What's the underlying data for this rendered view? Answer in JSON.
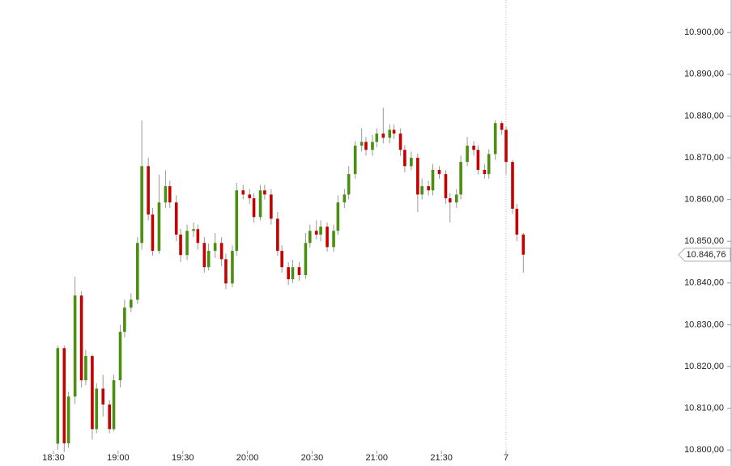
{
  "chart_data": {
    "type": "candlestick",
    "x": [
      "18:32",
      "18:35",
      "18:37",
      "18:40",
      "18:43",
      "18:45",
      "18:48",
      "18:50",
      "18:53",
      "18:56",
      "18:58",
      "19:01",
      "19:03",
      "19:06",
      "19:09",
      "19:11",
      "19:14",
      "19:16",
      "19:19",
      "19:22",
      "19:24",
      "19:27",
      "19:29",
      "19:32",
      "19:35",
      "19:37",
      "19:40",
      "19:42",
      "19:45",
      "19:48",
      "19:50",
      "19:53",
      "19:55",
      "19:58",
      "20:01",
      "20:03",
      "20:06",
      "20:08",
      "20:11",
      "20:14",
      "20:16",
      "20:19",
      "20:21",
      "20:24",
      "20:27",
      "20:29",
      "20:32",
      "20:34",
      "20:37",
      "20:40",
      "20:42",
      "20:45",
      "20:47",
      "20:50",
      "20:53",
      "20:55",
      "20:58",
      "21:00",
      "21:03",
      "21:06",
      "21:08",
      "21:11",
      "21:13",
      "21:16",
      "21:19",
      "21:21",
      "21:24",
      "21:26",
      "21:29",
      "21:32",
      "21:34",
      "21:37",
      "21:39",
      "21:42",
      "21:45",
      "21:47",
      "21:50",
      "21:52",
      "21:55",
      "21:58",
      "22:00",
      "22:03",
      "22:05",
      "22:08"
    ],
    "open": [
      10801.5,
      10824.4,
      10801.6,
      10812.8,
      10837.0,
      10816.7,
      10822.5,
      10805.0,
      10814.7,
      10810.9,
      10805.0,
      10816.7,
      10828.3,
      10834.1,
      10836.0,
      10849.6,
      10868.0,
      10856.4,
      10847.7,
      10859.3,
      10863.2,
      10859.3,
      10851.6,
      10846.7,
      10852.5,
      10852.9,
      10849.6,
      10843.8,
      10847.7,
      10849.6,
      10845.7,
      10839.9,
      10847.7,
      10862.2,
      10861.2,
      10860.3,
      10855.8,
      10862.2,
      10861.2,
      10855.4,
      10847.7,
      10843.8,
      10840.9,
      10843.8,
      10841.9,
      10849.6,
      10852.5,
      10851.6,
      10853.5,
      10848.6,
      10852.5,
      10859.3,
      10861.2,
      10866.1,
      10872.9,
      10873.8,
      10871.9,
      10873.8,
      10875.8,
      10874.8,
      10876.7,
      10875.8,
      10871.9,
      10868.0,
      10870.0,
      10861.2,
      10863.2,
      10862.2,
      10867.1,
      10866.1,
      10860.3,
      10859.3,
      10861.2,
      10869.0,
      10872.9,
      10871.9,
      10867.1,
      10866.1,
      10870.9,
      10878.3,
      10876.7,
      10869.0,
      10857.8,
      10851.6
    ],
    "high": [
      10825.0,
      10825.0,
      10814.0,
      10841.5,
      10838.0,
      10824.0,
      10823.0,
      10816.0,
      10818.0,
      10812.0,
      10818.0,
      10830.0,
      10836.0,
      10837.5,
      10851.0,
      10879.0,
      10870.0,
      10858.0,
      10866.0,
      10867.0,
      10864.5,
      10861.0,
      10853.0,
      10854.0,
      10854.5,
      10854.0,
      10851.0,
      10849.5,
      10852.0,
      10851.0,
      10847.0,
      10849.0,
      10864.0,
      10863.5,
      10862.5,
      10861.5,
      10863.5,
      10863.5,
      10862.5,
      10857.0,
      10849.0,
      10845.0,
      10845.5,
      10845.0,
      10852.0,
      10854.0,
      10855.0,
      10855.0,
      10854.5,
      10854.0,
      10861.0,
      10862.5,
      10868.0,
      10874.0,
      10877.0,
      10875.0,
      10875.5,
      10877.0,
      10882.0,
      10878.0,
      10878.0,
      10877.0,
      10873.0,
      10871.5,
      10871.0,
      10865.0,
      10864.5,
      10868.5,
      10868.0,
      10867.0,
      10861.5,
      10862.5,
      10870.5,
      10875.0,
      10874.0,
      10873.0,
      10868.5,
      10872.0,
      10879.0,
      10878.8,
      10877.5,
      10869.5,
      10859.0,
      10852.0
    ],
    "low": [
      10800.0,
      10799.5,
      10800.5,
      10811.0,
      10815.0,
      10815.5,
      10802.5,
      10804.0,
      10808.0,
      10804.0,
      10804.5,
      10815.0,
      10827.0,
      10833.0,
      10835.0,
      10848.0,
      10855.0,
      10846.5,
      10847.0,
      10858.0,
      10858.0,
      10850.0,
      10845.0,
      10845.5,
      10851.0,
      10848.0,
      10842.5,
      10843.0,
      10846.0,
      10844.0,
      10838.5,
      10839.0,
      10846.5,
      10860.0,
      10859.0,
      10854.5,
      10855.0,
      10860.0,
      10854.0,
      10846.5,
      10842.5,
      10839.5,
      10840.0,
      10840.5,
      10841.0,
      10848.5,
      10850.5,
      10850.0,
      10847.5,
      10847.5,
      10851.5,
      10858.0,
      10860.0,
      10865.0,
      10871.5,
      10870.5,
      10870.5,
      10872.5,
      10873.5,
      10873.5,
      10874.5,
      10870.5,
      10866.5,
      10867.0,
      10857.0,
      10860.0,
      10861.0,
      10861.0,
      10865.0,
      10859.0,
      10854.5,
      10858.0,
      10860.0,
      10868.0,
      10870.5,
      10866.0,
      10865.0,
      10865.0,
      10869.5,
      10875.5,
      10866.0,
      10856.5,
      10850.0,
      10842.5
    ],
    "close": [
      10824.4,
      10801.6,
      10812.8,
      10837.0,
      10816.7,
      10822.5,
      10805.0,
      10814.7,
      10810.9,
      10805.0,
      10816.7,
      10828.3,
      10834.1,
      10836.0,
      10849.6,
      10868.0,
      10856.4,
      10847.7,
      10859.3,
      10863.2,
      10859.3,
      10851.6,
      10846.7,
      10852.5,
      10852.9,
      10849.6,
      10843.8,
      10847.7,
      10849.6,
      10845.7,
      10839.9,
      10847.7,
      10862.2,
      10861.2,
      10860.3,
      10855.8,
      10862.2,
      10861.2,
      10855.4,
      10847.7,
      10843.8,
      10840.9,
      10843.8,
      10841.9,
      10849.6,
      10852.5,
      10851.6,
      10853.5,
      10848.6,
      10852.5,
      10859.3,
      10861.2,
      10866.1,
      10872.9,
      10873.8,
      10871.9,
      10873.8,
      10875.8,
      10874.8,
      10876.7,
      10875.8,
      10871.9,
      10868.0,
      10870.0,
      10861.2,
      10863.2,
      10862.2,
      10867.1,
      10866.1,
      10860.3,
      10859.3,
      10861.2,
      10869.0,
      10872.9,
      10871.9,
      10867.1,
      10866.1,
      10870.9,
      10878.3,
      10876.7,
      10869.0,
      10857.8,
      10851.6,
      10846.8
    ],
    "up_color": "#4a8f10",
    "down_color": "#c40000",
    "xticks": [
      "18:30",
      "19:00",
      "19:30",
      "20:00",
      "20:30",
      "21:00",
      "21:30",
      {
        "value": "22:00",
        "label": "7"
      }
    ],
    "separator": "22:00",
    "ylim": [
      10798.1,
      10907.8
    ],
    "yticks": [
      {
        "value": 10800,
        "label": "10.800,00"
      },
      {
        "value": 10810,
        "label": "10.810,00"
      },
      {
        "value": 10820,
        "label": "10.820,00"
      },
      {
        "value": 10830,
        "label": "10.830,00"
      },
      {
        "value": 10840,
        "label": "10.840,00"
      },
      {
        "value": 10850,
        "label": "10.850,00"
      },
      {
        "value": 10860,
        "label": "10.860,00"
      },
      {
        "value": 10870,
        "label": "10.870,00"
      },
      {
        "value": 10880,
        "label": "10.880,00"
      },
      {
        "value": 10890,
        "label": "10.890,00"
      },
      {
        "value": 10900,
        "label": "10.900,00"
      }
    ],
    "last_price": {
      "value": 10846.76,
      "label": "10.846,76"
    }
  }
}
